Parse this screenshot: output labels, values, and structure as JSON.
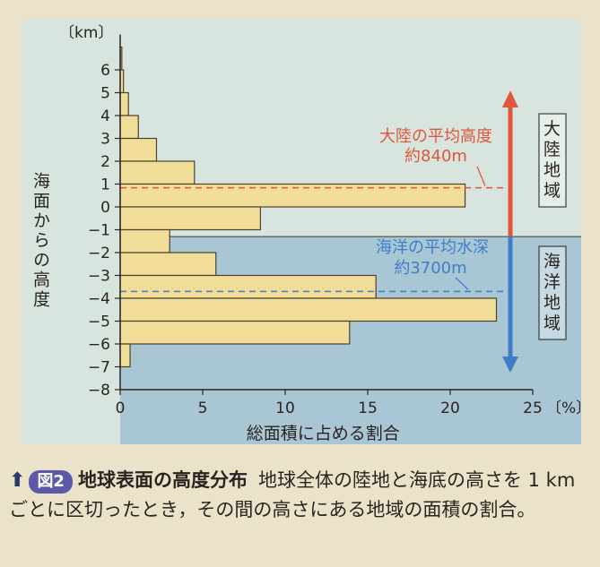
{
  "chart_data": {
    "type": "bar",
    "orientation": "horizontal",
    "ylabel_unit": "〔km〕",
    "ylabel": "海面からの高度",
    "xlabel": "総面積に占める割合",
    "xlabel_unit": "〔%〕",
    "xlim": [
      0,
      25
    ],
    "ylim": [
      -8,
      7
    ],
    "x_ticks": [
      "0",
      "5",
      "10",
      "15",
      "20",
      "25"
    ],
    "y_ticks": [
      "6",
      "5",
      "4",
      "3",
      "2",
      "1",
      "0",
      "−1",
      "−2",
      "−3",
      "−4",
      "−5",
      "−6",
      "−7",
      "−8"
    ],
    "bins": [
      {
        "from": 6,
        "to": 7,
        "value": 0.1
      },
      {
        "from": 5,
        "to": 6,
        "value": 0.2
      },
      {
        "from": 4,
        "to": 5,
        "value": 0.5
      },
      {
        "from": 3,
        "to": 4,
        "value": 1.1
      },
      {
        "from": 2,
        "to": 3,
        "value": 2.2
      },
      {
        "from": 1,
        "to": 2,
        "value": 4.5
      },
      {
        "from": 0,
        "to": 1,
        "value": 20.9
      },
      {
        "from": -1,
        "to": 0,
        "value": 8.5
      },
      {
        "from": -2,
        "to": -1,
        "value": 3.0
      },
      {
        "from": -3,
        "to": -2,
        "value": 5.8
      },
      {
        "from": -4,
        "to": -3,
        "value": 15.5
      },
      {
        "from": -5,
        "to": -4,
        "value": 22.8
      },
      {
        "from": -6,
        "to": -5,
        "value": 13.9
      },
      {
        "from": -7,
        "to": -6,
        "value": 0.6
      }
    ],
    "reference_lines": [
      {
        "value": 0.84,
        "label": "大陸の平均高度",
        "value_label": "約840m",
        "color": "#e0563a"
      },
      {
        "value": -3.7,
        "label": "海洋の平均水深",
        "value_label": "約3700m",
        "color": "#3f7ec7"
      }
    ],
    "sea_level": -1.3,
    "regions": [
      {
        "label": "大陸地域",
        "color": "#e0563a"
      },
      {
        "label": "海洋地域",
        "color": "#3f7ec7"
      }
    ],
    "grid": false
  },
  "caption": {
    "arrow": "⬆",
    "badge": "図2",
    "title": "地球表面の高度分布",
    "text": "地球全体の陸地と海底の高さを 1 km ごとに区切ったとき，その間の高さにある地域の面積の割合。"
  }
}
